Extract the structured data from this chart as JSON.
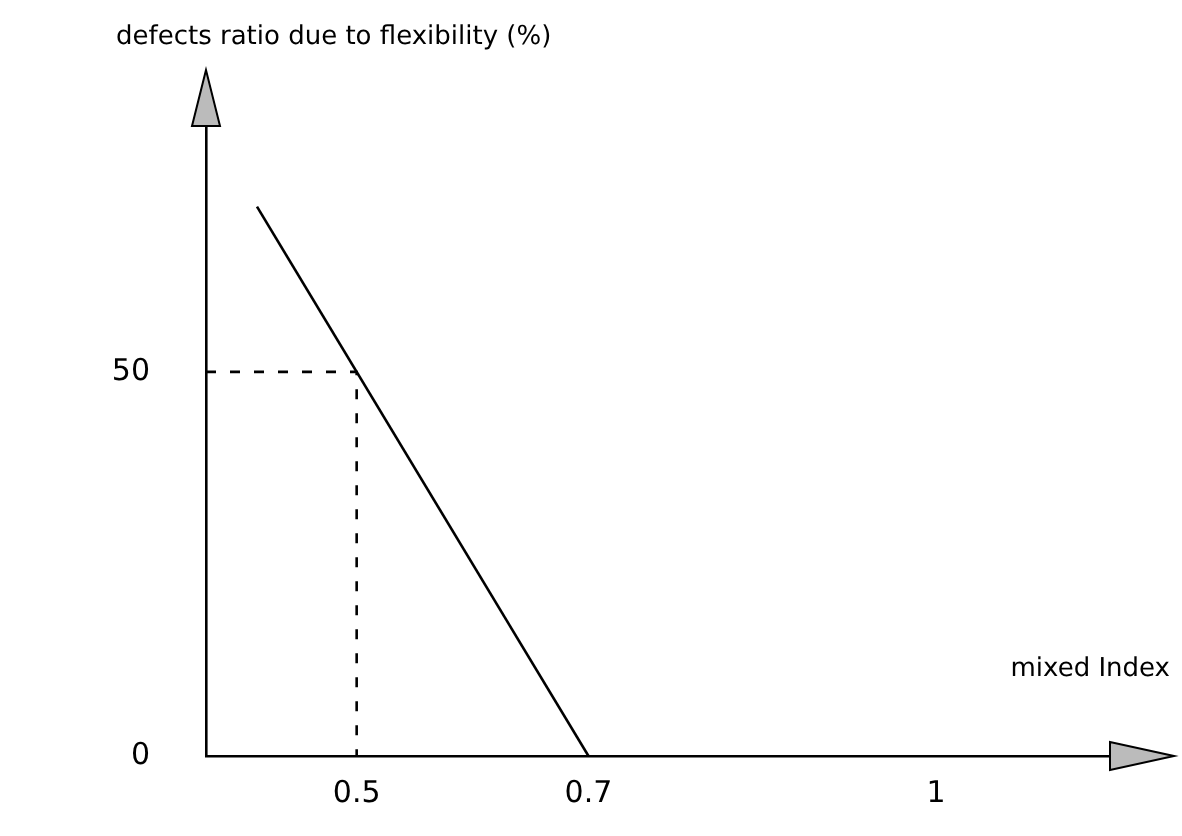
{
  "chart_data": {
    "type": "line",
    "ylabel": "defects ratio due to flexibility (%)",
    "xlabel": "mixed Index",
    "xlim": [
      0.37,
      1.15
    ],
    "ylim": [
      0,
      82
    ],
    "xticks": [
      0.5,
      0.7,
      1
    ],
    "yticks": [
      0,
      50
    ],
    "grid": false,
    "legend": false,
    "marker": "none",
    "series": [
      {
        "color": "#000000",
        "x": [
          0.414,
          0.7
        ],
        "values": [
          71.5,
          0
        ],
        "line_style": "solid"
      },
      {
        "color": "#000000",
        "x": [
          0.37,
          0.5,
          0.5
        ],
        "values": [
          50,
          50,
          0
        ],
        "line_style": "dashed"
      }
    ]
  }
}
